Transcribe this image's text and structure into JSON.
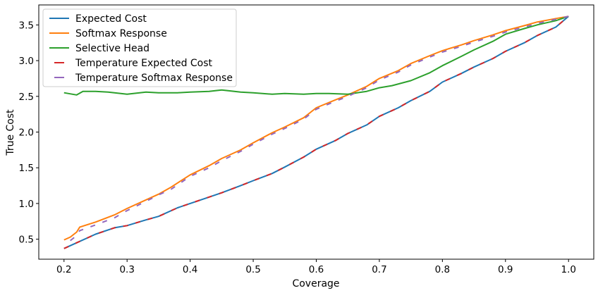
{
  "chart_data": {
    "type": "line",
    "xlabel": "Coverage",
    "ylabel": "True Cost",
    "xlim": [
      0.16,
      1.04
    ],
    "ylim": [
      0.22,
      3.78
    ],
    "x_ticks": [
      "0.2",
      "0.3",
      "0.4",
      "0.5",
      "0.6",
      "0.7",
      "0.8",
      "0.9",
      "1.0"
    ],
    "y_ticks": [
      "0.5",
      "1.0",
      "1.5",
      "2.0",
      "2.5",
      "3.0",
      "3.5"
    ],
    "grid": false,
    "legend_position": "top-left",
    "series": [
      {
        "name": "Expected Cost",
        "color": "#1f77b4",
        "style": "solid",
        "x": [
          0.2,
          0.22,
          0.25,
          0.28,
          0.3,
          0.33,
          0.35,
          0.38,
          0.4,
          0.43,
          0.45,
          0.48,
          0.5,
          0.53,
          0.55,
          0.58,
          0.6,
          0.63,
          0.65,
          0.68,
          0.7,
          0.73,
          0.75,
          0.78,
          0.8,
          0.83,
          0.85,
          0.88,
          0.9,
          0.93,
          0.95,
          0.98,
          1.0
        ],
        "y": [
          0.37,
          0.45,
          0.57,
          0.66,
          0.69,
          0.77,
          0.82,
          0.94,
          1.0,
          1.09,
          1.15,
          1.25,
          1.32,
          1.42,
          1.51,
          1.65,
          1.76,
          1.88,
          1.98,
          2.1,
          2.22,
          2.34,
          2.44,
          2.57,
          2.7,
          2.82,
          2.91,
          3.03,
          3.13,
          3.25,
          3.35,
          3.47,
          3.62
        ]
      },
      {
        "name": "Softmax Response",
        "color": "#ff7f0e",
        "style": "solid",
        "x": [
          0.2,
          0.21,
          0.22,
          0.225,
          0.25,
          0.28,
          0.3,
          0.33,
          0.35,
          0.37,
          0.4,
          0.43,
          0.45,
          0.48,
          0.5,
          0.53,
          0.55,
          0.58,
          0.6,
          0.63,
          0.65,
          0.68,
          0.7,
          0.73,
          0.75,
          0.78,
          0.8,
          0.83,
          0.85,
          0.88,
          0.9,
          0.93,
          0.95,
          0.98,
          1.0
        ],
        "y": [
          0.49,
          0.53,
          0.6,
          0.67,
          0.74,
          0.84,
          0.93,
          1.05,
          1.13,
          1.23,
          1.4,
          1.53,
          1.63,
          1.75,
          1.85,
          1.99,
          2.07,
          2.2,
          2.34,
          2.45,
          2.52,
          2.64,
          2.75,
          2.86,
          2.96,
          3.07,
          3.14,
          3.22,
          3.28,
          3.36,
          3.42,
          3.49,
          3.54,
          3.59,
          3.62
        ]
      },
      {
        "name": "Selective Head",
        "color": "#2ca02c",
        "style": "solid",
        "x": [
          0.2,
          0.22,
          0.23,
          0.25,
          0.27,
          0.3,
          0.33,
          0.35,
          0.38,
          0.4,
          0.43,
          0.45,
          0.48,
          0.5,
          0.53,
          0.55,
          0.58,
          0.6,
          0.62,
          0.65,
          0.68,
          0.7,
          0.72,
          0.75,
          0.78,
          0.8,
          0.83,
          0.85,
          0.88,
          0.9,
          0.93,
          0.95,
          0.98,
          1.0
        ],
        "y": [
          2.55,
          2.52,
          2.57,
          2.57,
          2.56,
          2.53,
          2.56,
          2.55,
          2.55,
          2.56,
          2.57,
          2.59,
          2.56,
          2.55,
          2.53,
          2.54,
          2.53,
          2.54,
          2.54,
          2.53,
          2.57,
          2.62,
          2.65,
          2.72,
          2.83,
          2.93,
          3.06,
          3.15,
          3.27,
          3.37,
          3.45,
          3.5,
          3.56,
          3.62
        ]
      },
      {
        "name": "Temperature Expected Cost",
        "color": "#d62728",
        "style": "dashed",
        "x": [
          0.2,
          0.22,
          0.25,
          0.28,
          0.3,
          0.33,
          0.35,
          0.38,
          0.4,
          0.43,
          0.45,
          0.48,
          0.5,
          0.53,
          0.55,
          0.58,
          0.6,
          0.63,
          0.65,
          0.68,
          0.7,
          0.73,
          0.75,
          0.78,
          0.8,
          0.83,
          0.85,
          0.88,
          0.9,
          0.93,
          0.95,
          0.98,
          1.0
        ],
        "y": [
          0.37,
          0.45,
          0.57,
          0.66,
          0.69,
          0.77,
          0.82,
          0.94,
          1.0,
          1.09,
          1.15,
          1.25,
          1.32,
          1.42,
          1.51,
          1.65,
          1.76,
          1.88,
          1.98,
          2.1,
          2.22,
          2.34,
          2.44,
          2.57,
          2.7,
          2.82,
          2.91,
          3.03,
          3.13,
          3.25,
          3.35,
          3.47,
          3.62
        ]
      },
      {
        "name": "Temperature Softmax Response",
        "color": "#9467bd",
        "style": "dashed",
        "x": [
          0.21,
          0.22,
          0.225,
          0.25,
          0.28,
          0.3,
          0.33,
          0.35,
          0.37,
          0.4,
          0.43,
          0.45,
          0.48,
          0.5,
          0.53,
          0.55,
          0.58,
          0.6,
          0.63,
          0.65,
          0.68,
          0.7,
          0.73,
          0.75,
          0.78,
          0.8,
          0.83,
          0.85,
          0.88,
          0.9,
          0.93,
          0.95,
          0.98,
          1.0
        ],
        "y": [
          0.48,
          0.55,
          0.62,
          0.7,
          0.8,
          0.9,
          1.03,
          1.12,
          1.2,
          1.38,
          1.5,
          1.6,
          1.73,
          1.83,
          1.97,
          2.05,
          2.18,
          2.32,
          2.43,
          2.5,
          2.62,
          2.73,
          2.84,
          2.94,
          3.05,
          3.12,
          3.2,
          3.26,
          3.34,
          3.4,
          3.47,
          3.52,
          3.58,
          3.62
        ]
      }
    ]
  }
}
